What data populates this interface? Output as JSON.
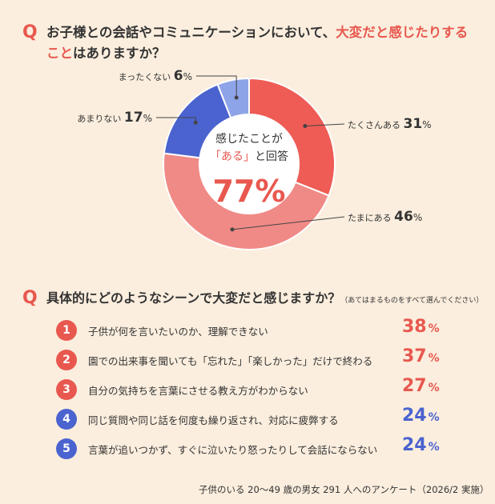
{
  "q1": {
    "mark": "Q",
    "text_before": "お子様との会話やコミュニケーションにおいて、",
    "text_highlight": "大変だと感じたりする",
    "text_line2_highlight": "こと",
    "text_line2_rest": "はありますか？"
  },
  "q1_center": {
    "line1": "感じたことが",
    "line2_quote": "「ある」",
    "line2_rest": "と回答",
    "value": "77%"
  },
  "q2": {
    "mark": "Q",
    "text": "具体的にどのようなシーンで大変だと感じますか？",
    "note": "（あてはまるものをすべて選んでください）",
    "items": [
      {
        "num": "1",
        "text": "子供が何を言いたいのか、理解できない",
        "value": "38",
        "unit": "%",
        "color": "#e8584f"
      },
      {
        "num": "2",
        "text": "園での出来事を聞いても「忘れた」「楽しかった」だけで終わる",
        "value": "37",
        "unit": "%",
        "color": "#e8584f"
      },
      {
        "num": "3",
        "text": "自分の気持ちを言葉にさせる教え方がわからない",
        "value": "27",
        "unit": "%",
        "color": "#e8584f"
      },
      {
        "num": "4",
        "text": "同じ質問や同じ話を何度も繰り返され、対応に疲弊する",
        "value": "24",
        "unit": "%",
        "color": "#4a63cf"
      },
      {
        "num": "5",
        "text": "言葉が追いつかず、すぐに泣いたり怒ったりして会話にならない",
        "value": "24",
        "unit": "%",
        "color": "#4a63cf"
      }
    ]
  },
  "footer": "子供のいる 20～49 歳の男女 291 人へのアンケート（2026/2 実施）",
  "chart_data": [
    {
      "type": "pie",
      "categories": [
        "たくさんある",
        "たまにある",
        "あまりない",
        "まったくない"
      ],
      "values": [
        31,
        46,
        17,
        6
      ],
      "colors": [
        "#ef5c55",
        "#f08a86",
        "#4a63cf",
        "#8ea4e8"
      ],
      "title": "お子様との会話やコミュニケーションにおいて、大変だと感じたりすることはありますか？"
    },
    {
      "type": "table",
      "categories": [
        "子供が何を言いたいのか、理解できない",
        "園での出来事を聞いても「忘れた」「楽しかった」だけで終わる",
        "自分の気持ちを言葉にさせる教え方がわからない",
        "同じ質問や同じ話を何度も繰り返され、対応に疲弊する",
        "言葉が追いつかず、すぐに泣いたり怒ったりして会話にならない"
      ],
      "values": [
        38,
        37,
        27,
        24,
        24
      ],
      "title": "具体的にどのようなシーンで大変だと感じますか？"
    }
  ]
}
